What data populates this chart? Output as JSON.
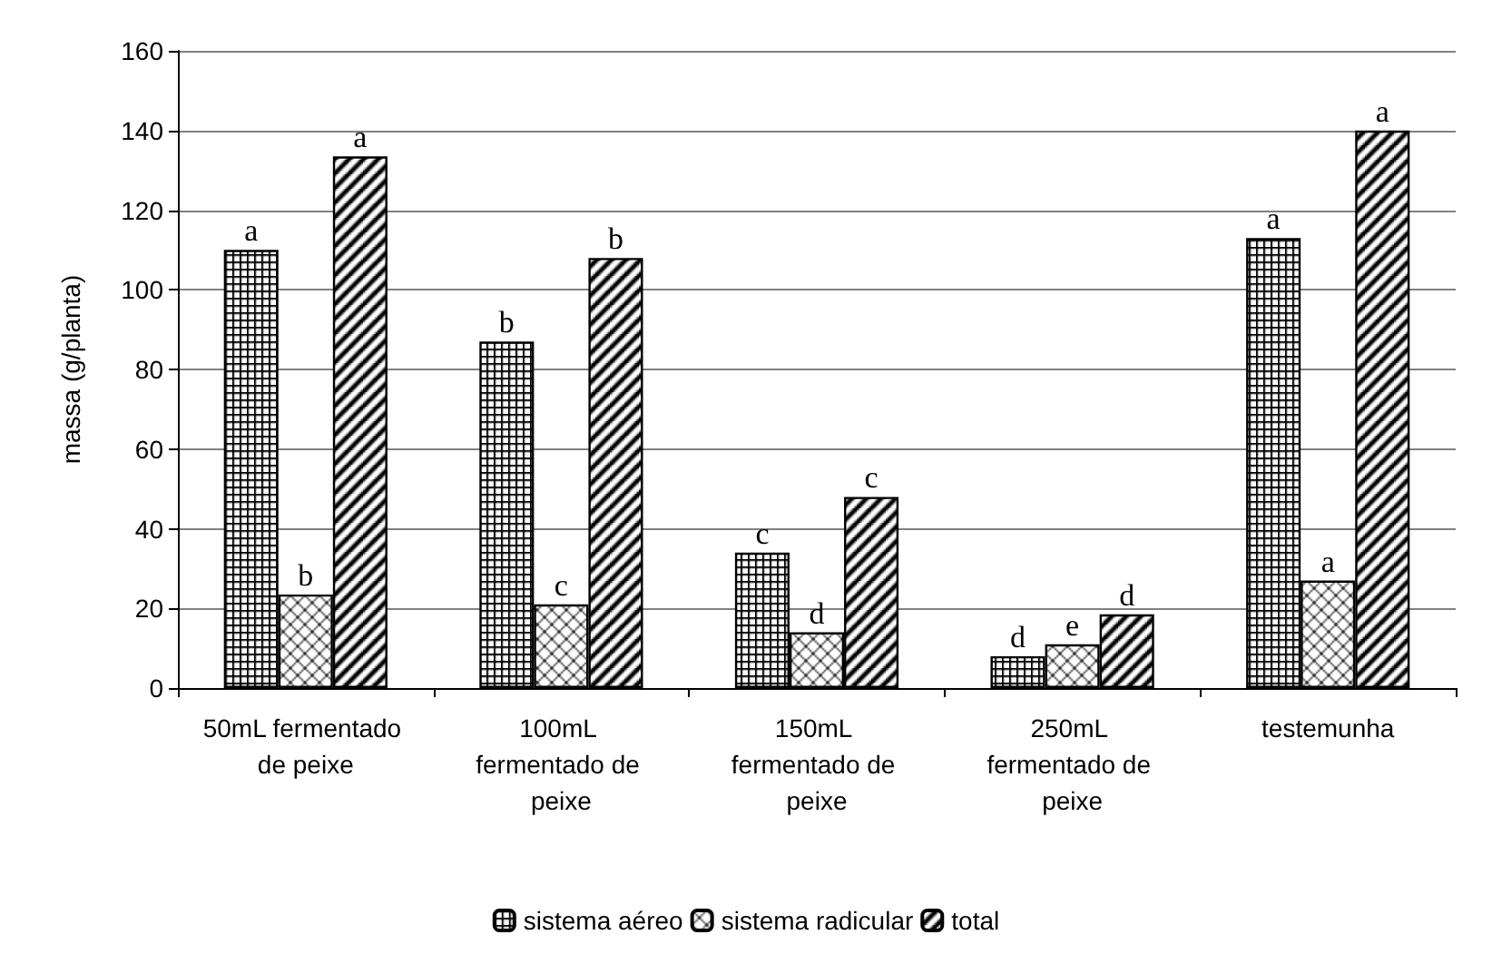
{
  "chart_data": {
    "type": "bar",
    "ylabel": "massa (g/planta)",
    "categories": [
      "50mL fermentado de peixe",
      "100mL fermentado de peixe",
      "150mL fermentado de peixe",
      "250mL fermentado de peixe",
      "testemunha"
    ],
    "series": [
      {
        "name": "sistema aéreo",
        "color": "#000000",
        "values": [
          110,
          87,
          34,
          8,
          113
        ],
        "value_labels": [
          "a",
          "b",
          "c",
          "d",
          "a"
        ]
      },
      {
        "name": "sistema radicular",
        "color": "#000000",
        "values": [
          23.5,
          21,
          14,
          11,
          27
        ],
        "value_labels": [
          "b",
          "c",
          "d",
          "e",
          "a"
        ]
      },
      {
        "name": "total",
        "color": "#000000",
        "values": [
          133.5,
          108,
          48,
          18.5,
          140
        ],
        "value_labels": [
          "a",
          "b",
          "c",
          "d",
          "a"
        ]
      }
    ],
    "ylim": [
      0,
      160
    ],
    "yticks": [
      0,
      20,
      40,
      60,
      80,
      100,
      120,
      140,
      160
    ],
    "grid": "y",
    "legend": "bottom"
  }
}
